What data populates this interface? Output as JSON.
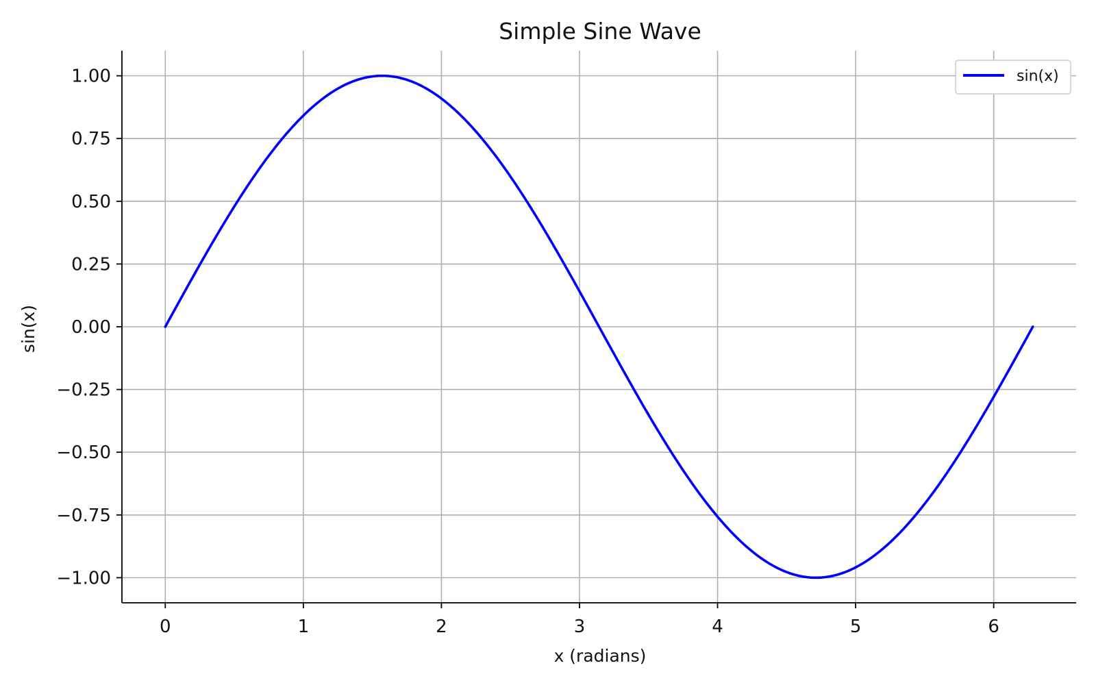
{
  "chart_data": {
    "type": "line",
    "title": "Simple Sine Wave",
    "xlabel": "x (radians)",
    "ylabel": "sin(x)",
    "xlim": [
      -0.314,
      6.597
    ],
    "ylim": [
      -1.1,
      1.1
    ],
    "x_ticks": [
      0,
      1,
      2,
      3,
      4,
      5,
      6
    ],
    "x_tick_labels": [
      "0",
      "1",
      "2",
      "3",
      "4",
      "5",
      "6"
    ],
    "y_ticks": [
      1.0,
      0.75,
      0.5,
      0.25,
      0.0,
      -0.25,
      -0.5,
      -0.75,
      -1.0
    ],
    "y_tick_labels": [
      "1.00",
      "0.75",
      "0.50",
      "0.25",
      "0.00",
      "−0.25",
      "−0.50",
      "−0.75",
      "−1.00"
    ],
    "grid": true,
    "legend_position": "top-right",
    "series": [
      {
        "name": "sin(x)",
        "color": "#0000ff",
        "x": [
          0,
          0.2,
          0.4,
          0.6,
          0.8,
          1.0,
          1.2,
          1.4,
          1.5708,
          1.8,
          2.0,
          2.2,
          2.4,
          2.6,
          2.8,
          3.0,
          3.1416,
          3.3,
          3.5,
          3.7,
          3.9,
          4.1,
          4.3,
          4.5,
          4.7124,
          4.9,
          5.1,
          5.3,
          5.5,
          5.7,
          5.9,
          6.1,
          6.2832
        ],
        "y": [
          0,
          0.199,
          0.389,
          0.565,
          0.717,
          0.841,
          0.932,
          0.985,
          1.0,
          0.974,
          0.909,
          0.808,
          0.675,
          0.516,
          0.335,
          0.141,
          0,
          -0.158,
          -0.351,
          -0.53,
          -0.688,
          -0.818,
          -0.916,
          -0.978,
          -1.0,
          -0.982,
          -0.926,
          -0.832,
          -0.706,
          -0.551,
          -0.374,
          -0.182,
          0
        ]
      }
    ]
  }
}
